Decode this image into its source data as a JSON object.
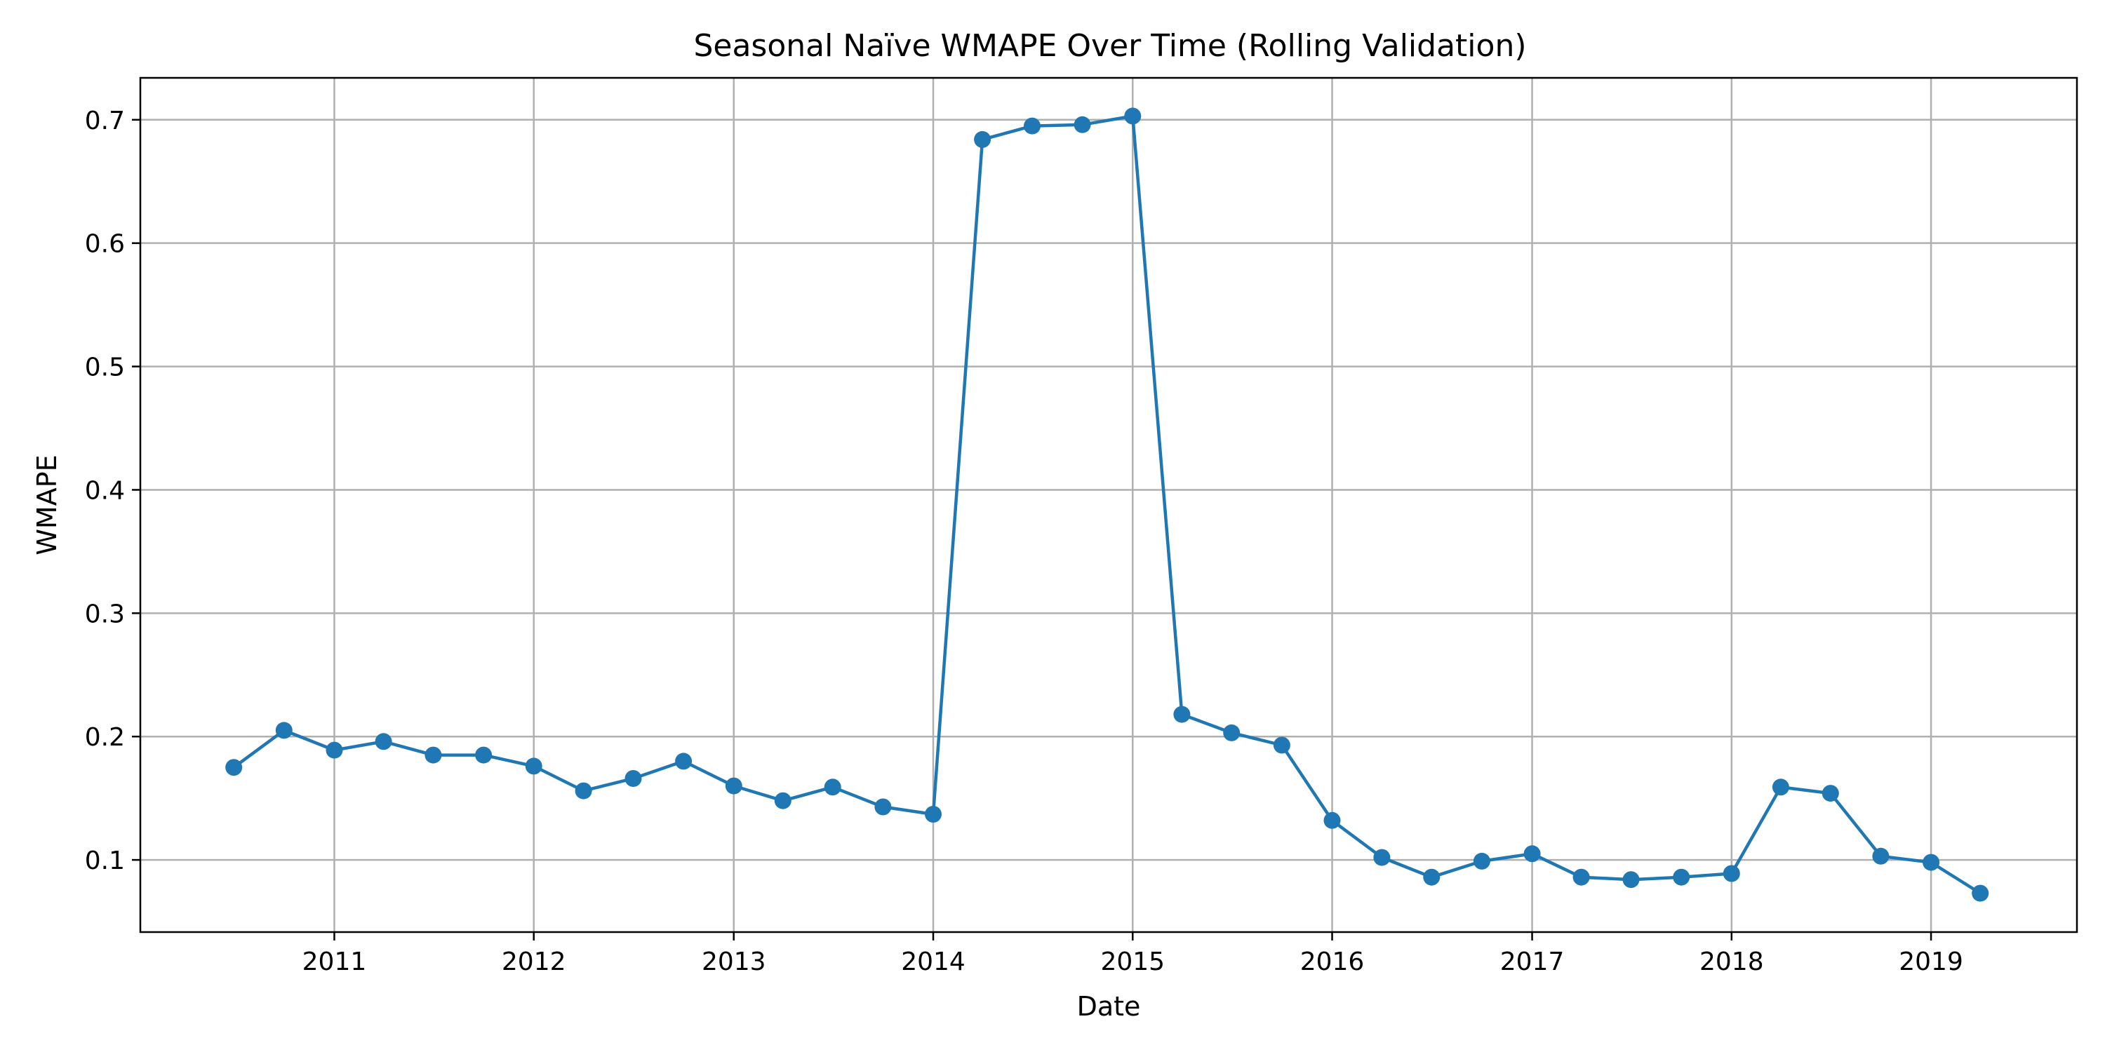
{
  "chart_data": {
    "type": "line",
    "title": "Seasonal Naïve WMAPE Over Time (Rolling Validation)",
    "xlabel": "Date",
    "ylabel": "WMAPE",
    "x_tick_labels": [
      "2011",
      "2012",
      "2013",
      "2014",
      "2015",
      "2016",
      "2017",
      "2018",
      "2019"
    ],
    "y_tick_labels": [
      "0.1",
      "0.2",
      "0.3",
      "0.4",
      "0.5",
      "0.6",
      "0.7"
    ],
    "xlim": [
      "2010-01-11",
      "2019-09-25"
    ],
    "ylim": [
      0.0415,
      0.734
    ],
    "grid": true,
    "legend": "none",
    "colors": {
      "line": "#1f77b4",
      "grid": "#b0b0b0",
      "axis": "#000000"
    },
    "series": [
      {
        "x": [
          "2010-07-01",
          "2010-10-01",
          "2011-01-01",
          "2011-04-01",
          "2011-07-01",
          "2011-10-01",
          "2012-01-01",
          "2012-04-01",
          "2012-07-01",
          "2012-10-01",
          "2013-01-01",
          "2013-04-01",
          "2013-07-01",
          "2013-10-01",
          "2014-01-01",
          "2014-04-01",
          "2014-07-01",
          "2014-10-01",
          "2015-01-01",
          "2015-04-01",
          "2015-07-01",
          "2015-10-01",
          "2016-01-01",
          "2016-04-01",
          "2016-07-01",
          "2016-10-01",
          "2017-01-01",
          "2017-04-01",
          "2017-07-01",
          "2017-10-01",
          "2018-01-01",
          "2018-04-01",
          "2018-07-01",
          "2018-10-01",
          "2019-01-01",
          "2019-04-01"
        ],
        "values": [
          0.175,
          0.205,
          0.189,
          0.196,
          0.185,
          0.185,
          0.176,
          0.156,
          0.166,
          0.18,
          0.16,
          0.148,
          0.159,
          0.143,
          0.137,
          0.684,
          0.695,
          0.696,
          0.703,
          0.218,
          0.203,
          0.193,
          0.132,
          0.102,
          0.086,
          0.099,
          0.105,
          0.086,
          0.084,
          0.086,
          0.089,
          0.159,
          0.154,
          0.103,
          0.098,
          0.073
        ]
      }
    ]
  }
}
